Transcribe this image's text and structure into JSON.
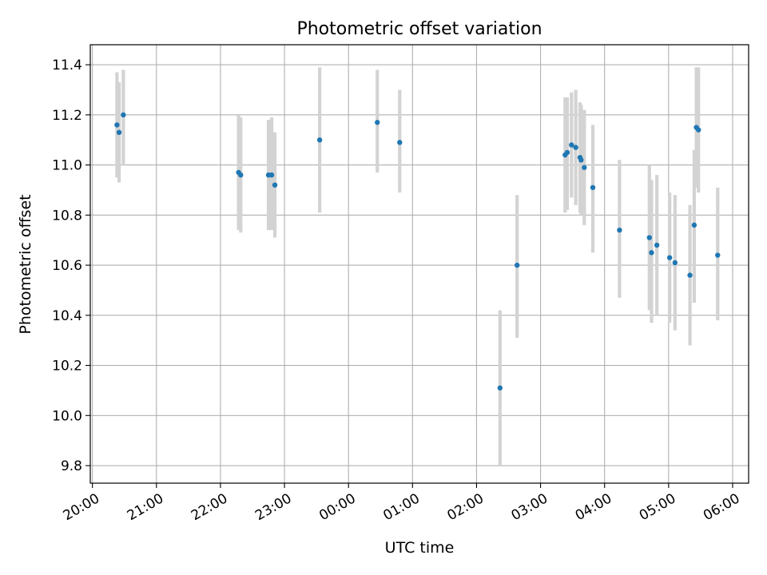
{
  "chart_data": {
    "type": "scatter",
    "title": "Photometric offset variation",
    "xlabel": "UTC time",
    "ylabel": "Photometric offset",
    "grid": true,
    "x_axis_kind": "time",
    "xlim": [
      "19:58",
      "06:15"
    ],
    "ylim": [
      9.73,
      11.48
    ],
    "x_ticks": [
      "20:00",
      "21:00",
      "22:00",
      "23:00",
      "00:00",
      "01:00",
      "02:00",
      "03:00",
      "04:00",
      "05:00",
      "06:00"
    ],
    "y_ticks": [
      "9.8",
      "10.0",
      "10.2",
      "10.4",
      "10.6",
      "10.8",
      "11.0",
      "11.2",
      "11.4"
    ],
    "colors": {
      "point": "#1f77b4",
      "errorbar": "#d3d3d3",
      "grid": "#b0b0b0"
    },
    "points": [
      {
        "x": "20:23",
        "y": 11.16,
        "lo": 10.95,
        "hi": 11.37
      },
      {
        "x": "20:25",
        "y": 11.13,
        "lo": 10.93,
        "hi": 11.33
      },
      {
        "x": "20:29",
        "y": 11.2,
        "lo": 11.0,
        "hi": 11.38
      },
      {
        "x": "22:17",
        "y": 10.97,
        "lo": 10.74,
        "hi": 11.2
      },
      {
        "x": "22:19",
        "y": 10.96,
        "lo": 10.73,
        "hi": 11.19
      },
      {
        "x": "22:45",
        "y": 10.96,
        "lo": 10.74,
        "hi": 11.18
      },
      {
        "x": "22:48",
        "y": 10.96,
        "lo": 10.74,
        "hi": 11.19
      },
      {
        "x": "22:51",
        "y": 10.92,
        "lo": 10.71,
        "hi": 11.13
      },
      {
        "x": "23:33",
        "y": 11.1,
        "lo": 10.81,
        "hi": 11.39
      },
      {
        "x": "00:27",
        "y": 11.17,
        "lo": 10.97,
        "hi": 11.38
      },
      {
        "x": "00:48",
        "y": 11.09,
        "lo": 10.89,
        "hi": 11.3
      },
      {
        "x": "02:22",
        "y": 10.11,
        "lo": 9.8,
        "hi": 10.42
      },
      {
        "x": "02:38",
        "y": 10.6,
        "lo": 10.31,
        "hi": 10.88
      },
      {
        "x": "03:23",
        "y": 11.04,
        "lo": 10.81,
        "hi": 11.27
      },
      {
        "x": "03:25",
        "y": 11.05,
        "lo": 10.82,
        "hi": 11.27
      },
      {
        "x": "03:29",
        "y": 11.08,
        "lo": 10.87,
        "hi": 11.29
      },
      {
        "x": "03:33",
        "y": 11.07,
        "lo": 10.84,
        "hi": 11.3
      },
      {
        "x": "03:37",
        "y": 11.03,
        "lo": 10.81,
        "hi": 11.25
      },
      {
        "x": "03:38",
        "y": 11.02,
        "lo": 10.8,
        "hi": 11.24
      },
      {
        "x": "03:41",
        "y": 10.99,
        "lo": 10.76,
        "hi": 11.22
      },
      {
        "x": "03:49",
        "y": 10.91,
        "lo": 10.65,
        "hi": 11.16
      },
      {
        "x": "04:14",
        "y": 10.74,
        "lo": 10.47,
        "hi": 11.02
      },
      {
        "x": "04:42",
        "y": 10.71,
        "lo": 10.42,
        "hi": 11.0
      },
      {
        "x": "04:44",
        "y": 10.65,
        "lo": 10.37,
        "hi": 10.94
      },
      {
        "x": "04:49",
        "y": 10.68,
        "lo": 10.4,
        "hi": 10.96
      },
      {
        "x": "05:01",
        "y": 10.63,
        "lo": 10.37,
        "hi": 10.89
      },
      {
        "x": "05:06",
        "y": 10.61,
        "lo": 10.34,
        "hi": 10.88
      },
      {
        "x": "05:20",
        "y": 10.56,
        "lo": 10.28,
        "hi": 10.84
      },
      {
        "x": "05:24",
        "y": 10.76,
        "lo": 10.45,
        "hi": 11.06
      },
      {
        "x": "05:26",
        "y": 11.15,
        "lo": 10.91,
        "hi": 11.39
      },
      {
        "x": "05:28",
        "y": 11.14,
        "lo": 10.89,
        "hi": 11.39
      },
      {
        "x": "05:46",
        "y": 10.64,
        "lo": 10.38,
        "hi": 10.91
      }
    ]
  }
}
